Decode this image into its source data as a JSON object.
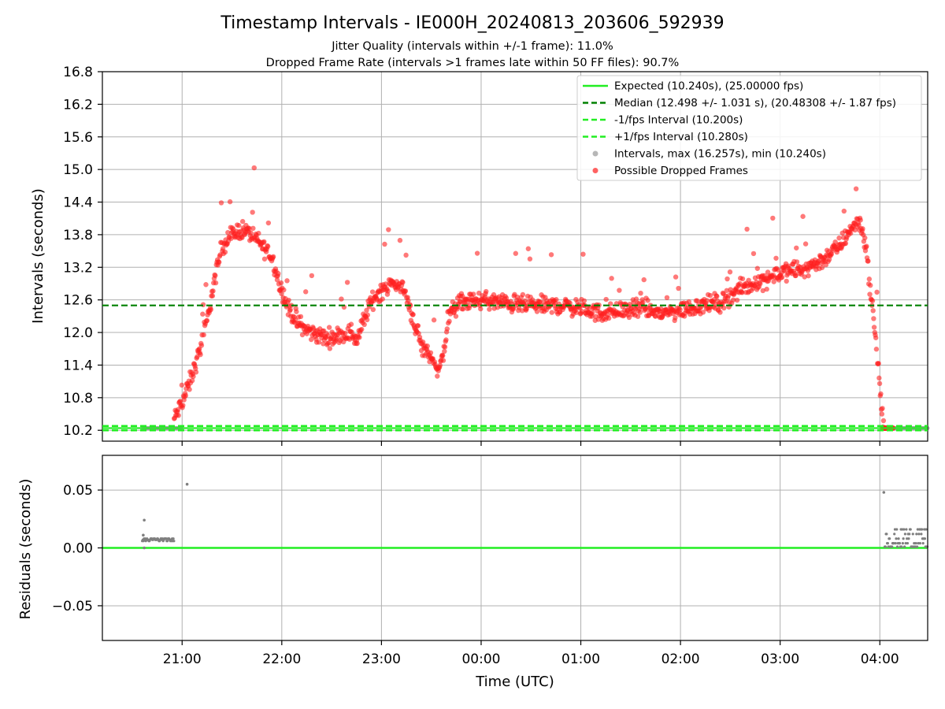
{
  "chart_data": [
    {
      "type": "scatter",
      "title": "Timestamp Intervals - IE000H_20240813_203606_592939",
      "subtitle_lines": [
        "Jitter Quality (intervals within +/-1 frame): 11.0%",
        "Dropped Frame Rate (intervals >1 frames late within 50 FF files): 90.7%"
      ],
      "xlabel": "",
      "ylabel": "Intervals (seconds)",
      "ylim": [
        10.0,
        16.8
      ],
      "yticks": [
        "10.2",
        "10.8",
        "11.4",
        "12.0",
        "12.6",
        "13.2",
        "13.8",
        "14.4",
        "15.0",
        "15.6",
        "16.2",
        "16.8"
      ],
      "xlim_hours": [
        -3.8,
        4.48
      ],
      "xticks": [
        "21:00",
        "22:00",
        "23:00",
        "00:00",
        "01:00",
        "02:00",
        "03:00",
        "04:00"
      ],
      "grid": true,
      "legend_position": "upper-right",
      "lines": {
        "expected": 10.24,
        "median": 12.498,
        "minus_fps": 10.2,
        "plus_fps": 10.28
      },
      "legend": [
        {
          "label": "Expected (10.240s), (25.00000 fps)",
          "style": "solid",
          "color": "#22ee22"
        },
        {
          "label": "Median (12.498 +/- 1.031 s), (20.48308 +/- 1.87 fps)",
          "style": "dashed",
          "color": "#008000"
        },
        {
          "label": "-1/fps Interval (10.200s)",
          "style": "dashed",
          "color": "#22ee22"
        },
        {
          "label": "+1/fps Interval (10.280s)",
          "style": "dashed",
          "color": "#22ee22"
        },
        {
          "label": "Intervals, max (16.257s), min (10.240s)",
          "style": "dot",
          "color": "#999999"
        },
        {
          "label": "Possible Dropped Frames",
          "style": "dot",
          "color": "#ff2020"
        }
      ],
      "series": [
        {
          "name": "Possible Dropped Frames",
          "color": "#ff2020",
          "trend": [
            [
              -3.08,
              10.4
            ],
            [
              -2.98,
              10.8
            ],
            [
              -2.9,
              11.2
            ],
            [
              -2.82,
              11.7
            ],
            [
              -2.75,
              12.2
            ],
            [
              -2.68,
              12.9
            ],
            [
              -2.6,
              13.6
            ],
            [
              -2.5,
              13.8
            ],
            [
              -2.4,
              13.9
            ],
            [
              -2.3,
              13.8
            ],
            [
              -2.2,
              13.6
            ],
            [
              -2.1,
              13.4
            ],
            [
              -2.02,
              12.9
            ],
            [
              -1.95,
              12.5
            ],
            [
              -1.88,
              12.3
            ],
            [
              -1.8,
              12.1
            ],
            [
              -1.7,
              12.0
            ],
            [
              -1.55,
              11.9
            ],
            [
              -1.4,
              11.95
            ],
            [
              -1.3,
              12.0
            ],
            [
              -1.25,
              11.85
            ],
            [
              -1.2,
              12.1
            ],
            [
              -1.12,
              12.5
            ],
            [
              -1.05,
              12.7
            ],
            [
              -0.95,
              12.85
            ],
            [
              -0.85,
              12.9
            ],
            [
              -0.78,
              12.8
            ],
            [
              -0.72,
              12.5
            ],
            [
              -0.66,
              12.1
            ],
            [
              -0.6,
              11.75
            ],
            [
              -0.5,
              11.55
            ],
            [
              -0.42,
              11.3
            ],
            [
              -0.38,
              11.6
            ],
            [
              -0.34,
              12.1
            ],
            [
              -0.3,
              12.4
            ],
            [
              -0.2,
              12.55
            ],
            [
              0.0,
              12.6
            ],
            [
              0.2,
              12.55
            ],
            [
              0.5,
              12.5
            ],
            [
              0.8,
              12.5
            ],
            [
              1.0,
              12.45
            ],
            [
              1.2,
              12.35
            ],
            [
              1.4,
              12.4
            ],
            [
              1.6,
              12.45
            ],
            [
              1.8,
              12.35
            ],
            [
              2.0,
              12.4
            ],
            [
              2.2,
              12.5
            ],
            [
              2.4,
              12.55
            ],
            [
              2.6,
              12.8
            ],
            [
              2.8,
              12.95
            ],
            [
              3.0,
              13.1
            ],
            [
              3.2,
              13.15
            ],
            [
              3.4,
              13.3
            ],
            [
              3.6,
              13.6
            ],
            [
              3.7,
              13.9
            ],
            [
              3.8,
              14.05
            ],
            [
              3.86,
              13.6
            ],
            [
              3.92,
              12.5
            ],
            [
              3.96,
              11.9
            ],
            [
              4.0,
              11.0
            ],
            [
              4.03,
              10.4
            ],
            [
              4.04,
              10.25
            ]
          ],
          "spread": 0.2
        },
        {
          "name": "Intervals",
          "color": "#999999",
          "segments": [
            [
              -3.4,
              -3.0
            ],
            [
              4.05,
              4.48
            ]
          ],
          "value": 10.24
        }
      ]
    },
    {
      "type": "scatter",
      "ylabel": "Residuals (seconds)",
      "xlabel": "Time (UTC)",
      "ylim": [
        -0.08,
        0.08
      ],
      "yticks": [
        "−0.05",
        "0.00",
        "0.05"
      ],
      "xticks": [
        "21:00",
        "22:00",
        "23:00",
        "00:00",
        "01:00",
        "02:00",
        "03:00",
        "04:00"
      ],
      "grid": true,
      "zero_line_color": "#22ee22",
      "series": [
        {
          "name": "Residuals",
          "color": "#7f7f7f",
          "clusters": [
            {
              "x_range": [
                -3.4,
                -3.08
              ],
              "values": [
                0.006,
                0.007,
                0.008
              ]
            },
            {
              "x_range": [
                4.05,
                4.48
              ],
              "values": [
                0.001,
                0.004,
                0.008,
                0.012,
                0.016
              ]
            }
          ],
          "outliers": [
            [
              -3.38,
              0.024
            ],
            [
              -3.39,
              0.011
            ],
            [
              -3.38,
              0.0
            ],
            [
              -2.95,
              0.055
            ],
            [
              4.04,
              0.048
            ]
          ]
        }
      ]
    }
  ]
}
